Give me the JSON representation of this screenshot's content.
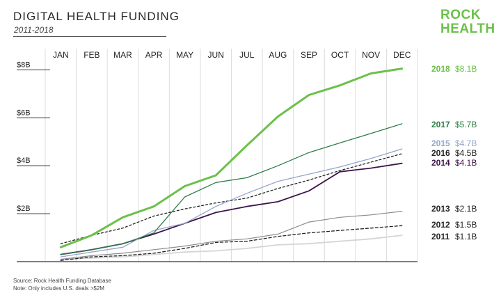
{
  "header": {
    "title": "DIGITAL HEALTH FUNDING",
    "subtitle": "2011-2018"
  },
  "logo": {
    "line1": "ROCK",
    "line2": "HEALTH",
    "alt": "Rock Health logo"
  },
  "footer": {
    "source": "Source: Rock Health Funding Database",
    "note": "Note: Only includes U.S. deals >$2M"
  },
  "chart_data": {
    "type": "line",
    "title": "DIGITAL HEALTH FUNDING",
    "subtitle": "2011-2018",
    "categories": [
      "JAN",
      "FEB",
      "MAR",
      "APR",
      "MAY",
      "JUN",
      "JUL",
      "AUG",
      "SEP",
      "OCT",
      "NOV",
      "DEC"
    ],
    "y_ticks": [
      {
        "value": 2,
        "label": "$2B"
      },
      {
        "value": 4,
        "label": "$4B"
      },
      {
        "value": 6,
        "label": "$6B"
      },
      {
        "value": 8,
        "label": "$8B"
      }
    ],
    "ylim": [
      0,
      8.3
    ],
    "grid": "vertical",
    "series": [
      {
        "name": "2018",
        "total": "$8.1B",
        "color": "#6cc04a",
        "dash": "",
        "width": 3,
        "values": [
          0.6,
          1.1,
          1.85,
          2.3,
          3.15,
          3.6,
          4.85,
          6.05,
          6.95,
          7.35,
          7.85,
          8.05
        ]
      },
      {
        "name": "2017",
        "total": "$5.7B",
        "color": "#2e7d48",
        "dash": "",
        "width": 1.3,
        "values": [
          0.3,
          0.5,
          0.75,
          1.2,
          2.7,
          3.3,
          3.5,
          4.0,
          4.55,
          4.95,
          5.35,
          5.75
        ]
      },
      {
        "name": "2015",
        "total": "$4.7B",
        "color": "#94a5cc",
        "dash": "",
        "width": 1.3,
        "values": [
          0.2,
          0.4,
          0.6,
          1.3,
          1.6,
          2.3,
          2.85,
          3.35,
          3.65,
          3.95,
          4.3,
          4.7
        ]
      },
      {
        "name": "2016",
        "total": "$4.5B",
        "color": "#222222",
        "dash": "3,3",
        "width": 1.3,
        "values": [
          0.75,
          1.1,
          1.4,
          1.9,
          2.2,
          2.45,
          2.65,
          3.05,
          3.4,
          3.8,
          4.15,
          4.5
        ]
      },
      {
        "name": "2014",
        "total": "$4.1B",
        "color": "#3b1549",
        "dash": "",
        "width": 1.8,
        "values": [
          0.3,
          0.5,
          0.75,
          1.15,
          1.6,
          2.05,
          2.3,
          2.5,
          2.95,
          3.75,
          3.9,
          4.1
        ]
      },
      {
        "name": "2013",
        "total": "$2.1B",
        "color": "#8c8c8c",
        "dash": "",
        "width": 1.2,
        "values": [
          0.1,
          0.25,
          0.35,
          0.5,
          0.65,
          0.85,
          0.95,
          1.15,
          1.65,
          1.85,
          1.95,
          2.1
        ]
      },
      {
        "name": "2012",
        "total": "$1.5B",
        "color": "#222222",
        "dash": "4,3",
        "width": 1.3,
        "values": [
          0.05,
          0.2,
          0.25,
          0.35,
          0.55,
          0.8,
          0.85,
          1.05,
          1.2,
          1.3,
          1.4,
          1.5
        ]
      },
      {
        "name": "2011",
        "total": "$1.1B",
        "color": "#d5d5d5",
        "dash": "",
        "width": 1.8,
        "values": [
          0.1,
          0.15,
          0.2,
          0.3,
          0.4,
          0.45,
          0.55,
          0.7,
          0.75,
          0.85,
          0.95,
          1.1
        ]
      }
    ],
    "legend_placement": "right, at line ends"
  }
}
